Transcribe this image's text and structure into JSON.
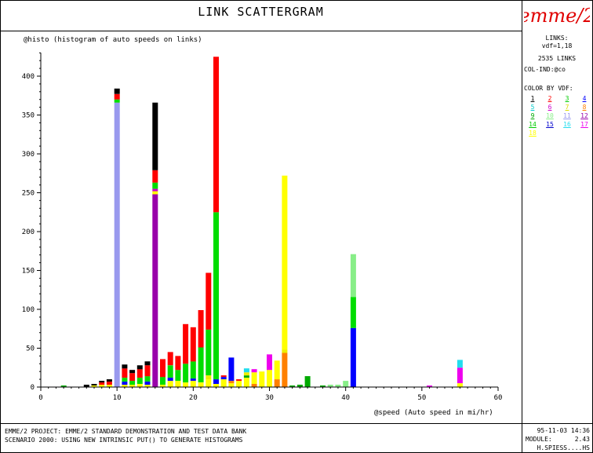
{
  "header": {
    "title": "LINK SCATTERGRAM",
    "logo_text": "emme/2"
  },
  "side_panel": {
    "links_label": "LINKS:",
    "links_filter": "vdf=1,18",
    "links_count": "2535 LINKS",
    "col_ind": "COL-IND:@co",
    "color_by": "COLOR BY VDF:",
    "vdf_legend": [
      {
        "n": "1",
        "color": "#000000"
      },
      {
        "n": "2",
        "color": "#ff0000"
      },
      {
        "n": "3",
        "color": "#00cc00"
      },
      {
        "n": "4",
        "color": "#0000ff"
      },
      {
        "n": "5",
        "color": "#00cccc"
      },
      {
        "n": "6",
        "color": "#cc00cc"
      },
      {
        "n": "7",
        "color": "#dddd00"
      },
      {
        "n": "8",
        "color": "#ff8000"
      },
      {
        "n": "9",
        "color": "#00aa00"
      },
      {
        "n": "10",
        "color": "#88ee88"
      },
      {
        "n": "11",
        "color": "#9999ee"
      },
      {
        "n": "12",
        "color": "#9900aa"
      },
      {
        "n": "14",
        "color": "#00cc00"
      },
      {
        "n": "15",
        "color": "#0000cc"
      },
      {
        "n": "16",
        "color": "#22ddee"
      },
      {
        "n": "17",
        "color": "#ee00ee"
      },
      {
        "n": "18",
        "color": "#ffff00"
      }
    ]
  },
  "footer": {
    "project": "EMME/2 PROJECT:  EMME/2 STANDARD DEMONSTRATION AND TEST DATA BANK",
    "scenario": "SCENARIO  2000:  USING NEW INTRINSIC PUT() TO GENERATE HISTOGRAMS",
    "date": "95-11-03 14:36",
    "module_label": "MODULE:",
    "module_value": "2.43",
    "user": "H.SPIESS....HS"
  },
  "chart_data": {
    "type": "bar",
    "stacked": true,
    "title": "@histo (histogram of auto speeds on links)",
    "xlabel": "@speed (Auto speed in mi/hr)",
    "xlim": [
      0,
      60
    ],
    "ylim": [
      0,
      430
    ],
    "xticks": [
      0,
      10,
      20,
      30,
      40,
      50,
      60
    ],
    "yticks": [
      0,
      50,
      100,
      150,
      200,
      250,
      300,
      350,
      400
    ],
    "colors": {
      "1": "#000000",
      "2": "#ff0000",
      "3": "#00dd00",
      "4": "#0000ff",
      "5": "#00cccc",
      "6": "#cc00cc",
      "7": "#eeee00",
      "8": "#ff8000",
      "9": "#00aa00",
      "10": "#88ee88",
      "11": "#9999ee",
      "12": "#9900aa",
      "14": "#00cc00",
      "15": "#0000cc",
      "16": "#22ddee",
      "17": "#ee00ee",
      "18": "#ffff00"
    },
    "bars": [
      {
        "x": 3,
        "segments": [
          {
            "vdf": "9",
            "value": 2
          }
        ]
      },
      {
        "x": 6,
        "segments": [
          {
            "vdf": "1",
            "value": 3
          }
        ]
      },
      {
        "x": 7,
        "segments": [
          {
            "vdf": "18",
            "value": 2
          },
          {
            "vdf": "1",
            "value": 2
          }
        ]
      },
      {
        "x": 8,
        "segments": [
          {
            "vdf": "18",
            "value": 3
          },
          {
            "vdf": "2",
            "value": 3
          },
          {
            "vdf": "1",
            "value": 2
          }
        ]
      },
      {
        "x": 9,
        "segments": [
          {
            "vdf": "18",
            "value": 3
          },
          {
            "vdf": "2",
            "value": 4
          },
          {
            "vdf": "1",
            "value": 3
          }
        ]
      },
      {
        "x": 10,
        "segments": [
          {
            "vdf": "11",
            "value": 366
          },
          {
            "vdf": "3",
            "value": 4
          },
          {
            "vdf": "2",
            "value": 7
          },
          {
            "vdf": "1",
            "value": 7
          }
        ]
      },
      {
        "x": 11,
        "segments": [
          {
            "vdf": "18",
            "value": 3
          },
          {
            "vdf": "4",
            "value": 4
          },
          {
            "vdf": "3",
            "value": 5
          },
          {
            "vdf": "2",
            "value": 12
          },
          {
            "vdf": "1",
            "value": 5
          }
        ]
      },
      {
        "x": 12,
        "segments": [
          {
            "vdf": "18",
            "value": 3
          },
          {
            "vdf": "3",
            "value": 5
          },
          {
            "vdf": "2",
            "value": 10
          },
          {
            "vdf": "1",
            "value": 4
          }
        ]
      },
      {
        "x": 13,
        "segments": [
          {
            "vdf": "18",
            "value": 4
          },
          {
            "vdf": "3",
            "value": 8
          },
          {
            "vdf": "2",
            "value": 11
          },
          {
            "vdf": "1",
            "value": 5
          }
        ]
      },
      {
        "x": 14,
        "segments": [
          {
            "vdf": "18",
            "value": 3
          },
          {
            "vdf": "4",
            "value": 4
          },
          {
            "vdf": "3",
            "value": 7
          },
          {
            "vdf": "2",
            "value": 14
          },
          {
            "vdf": "1",
            "value": 5
          }
        ]
      },
      {
        "x": 15,
        "segments": [
          {
            "vdf": "12",
            "value": 248
          },
          {
            "vdf": "18",
            "value": 4
          },
          {
            "vdf": "6",
            "value": 3
          },
          {
            "vdf": "3",
            "value": 8
          },
          {
            "vdf": "2",
            "value": 16
          },
          {
            "vdf": "1",
            "value": 87
          }
        ]
      },
      {
        "x": 16,
        "segments": [
          {
            "vdf": "18",
            "value": 3
          },
          {
            "vdf": "3",
            "value": 10
          },
          {
            "vdf": "2",
            "value": 23
          }
        ]
      },
      {
        "x": 17,
        "segments": [
          {
            "vdf": "18",
            "value": 8
          },
          {
            "vdf": "4",
            "value": 4
          },
          {
            "vdf": "3",
            "value": 16
          },
          {
            "vdf": "2",
            "value": 17
          }
        ]
      },
      {
        "x": 18,
        "segments": [
          {
            "vdf": "18",
            "value": 8
          },
          {
            "vdf": "3",
            "value": 14
          },
          {
            "vdf": "2",
            "value": 18
          }
        ]
      },
      {
        "x": 19,
        "segments": [
          {
            "vdf": "18",
            "value": 6
          },
          {
            "vdf": "3",
            "value": 24
          },
          {
            "vdf": "2",
            "value": 51
          }
        ]
      },
      {
        "x": 20,
        "segments": [
          {
            "vdf": "18",
            "value": 8
          },
          {
            "vdf": "4",
            "value": 3
          },
          {
            "vdf": "3",
            "value": 22
          },
          {
            "vdf": "2",
            "value": 44
          }
        ]
      },
      {
        "x": 21,
        "segments": [
          {
            "vdf": "18",
            "value": 6
          },
          {
            "vdf": "3",
            "value": 45
          },
          {
            "vdf": "2",
            "value": 48
          }
        ]
      },
      {
        "x": 22,
        "segments": [
          {
            "vdf": "18",
            "value": 10
          },
          {
            "vdf": "7",
            "value": 5
          },
          {
            "vdf": "3",
            "value": 59
          },
          {
            "vdf": "2",
            "value": 73
          }
        ]
      },
      {
        "x": 23,
        "segments": [
          {
            "vdf": "18",
            "value": 4
          },
          {
            "vdf": "4",
            "value": 6
          },
          {
            "vdf": "3",
            "value": 215
          },
          {
            "vdf": "2",
            "value": 200
          }
        ]
      },
      {
        "x": 24,
        "segments": [
          {
            "vdf": "18",
            "value": 10
          },
          {
            "vdf": "4",
            "value": 3
          },
          {
            "vdf": "2",
            "value": 2
          }
        ]
      },
      {
        "x": 25,
        "segments": [
          {
            "vdf": "18",
            "value": 5
          },
          {
            "vdf": "8",
            "value": 3
          },
          {
            "vdf": "4",
            "value": 30
          }
        ]
      },
      {
        "x": 26,
        "segments": [
          {
            "vdf": "18",
            "value": 8
          },
          {
            "vdf": "2",
            "value": 2
          }
        ]
      },
      {
        "x": 27,
        "segments": [
          {
            "vdf": "18",
            "value": 12
          },
          {
            "vdf": "9",
            "value": 3
          },
          {
            "vdf": "7",
            "value": 4
          },
          {
            "vdf": "16",
            "value": 5
          }
        ]
      },
      {
        "x": 28,
        "segments": [
          {
            "vdf": "8",
            "value": 4
          },
          {
            "vdf": "18",
            "value": 15
          },
          {
            "vdf": "17",
            "value": 4
          }
        ]
      },
      {
        "x": 29,
        "segments": [
          {
            "vdf": "18",
            "value": 20
          }
        ]
      },
      {
        "x": 30,
        "segments": [
          {
            "vdf": "18",
            "value": 22
          },
          {
            "vdf": "17",
            "value": 20
          }
        ]
      },
      {
        "x": 31,
        "segments": [
          {
            "vdf": "8",
            "value": 10
          },
          {
            "vdf": "18",
            "value": 24
          }
        ]
      },
      {
        "x": 32,
        "segments": [
          {
            "vdf": "8",
            "value": 44
          },
          {
            "vdf": "7",
            "value": 4
          },
          {
            "vdf": "18",
            "value": 224
          }
        ]
      },
      {
        "x": 33,
        "segments": [
          {
            "vdf": "9",
            "value": 2
          }
        ]
      },
      {
        "x": 34,
        "segments": [
          {
            "vdf": "9",
            "value": 3
          }
        ]
      },
      {
        "x": 35,
        "segments": [
          {
            "vdf": "9",
            "value": 14
          }
        ]
      },
      {
        "x": 37,
        "segments": [
          {
            "vdf": "9",
            "value": 2
          }
        ]
      },
      {
        "x": 38,
        "segments": [
          {
            "vdf": "10",
            "value": 3
          }
        ]
      },
      {
        "x": 39,
        "segments": [
          {
            "vdf": "10",
            "value": 3
          }
        ]
      },
      {
        "x": 40,
        "segments": [
          {
            "vdf": "10",
            "value": 8
          }
        ]
      },
      {
        "x": 41,
        "segments": [
          {
            "vdf": "4",
            "value": 76
          },
          {
            "vdf": "3",
            "value": 40
          },
          {
            "vdf": "10",
            "value": 55
          }
        ]
      },
      {
        "x": 51,
        "segments": [
          {
            "vdf": "17",
            "value": 2
          }
        ]
      },
      {
        "x": 55,
        "segments": [
          {
            "vdf": "18",
            "value": 5
          },
          {
            "vdf": "17",
            "value": 20
          },
          {
            "vdf": "16",
            "value": 10
          }
        ]
      }
    ]
  }
}
